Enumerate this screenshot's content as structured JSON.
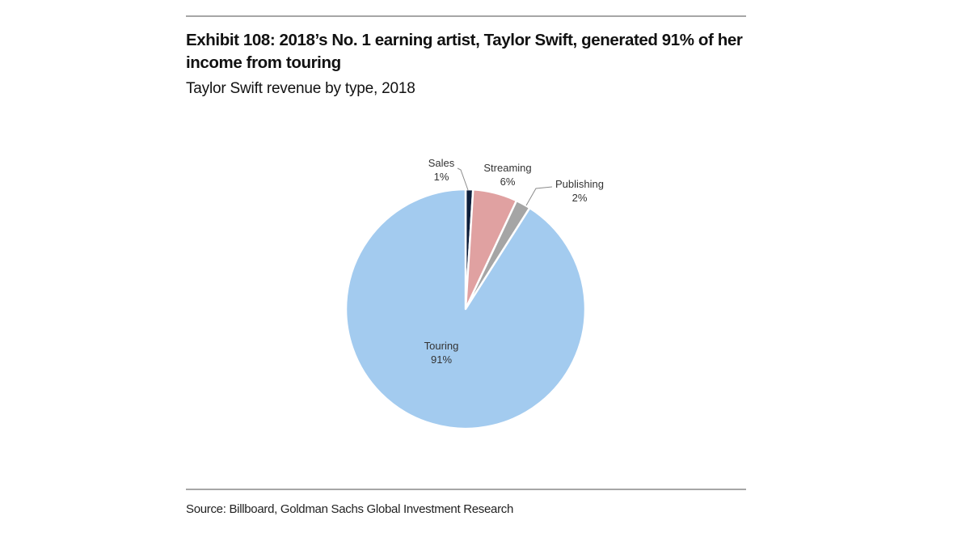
{
  "header": {
    "title": "Exhibit 108: 2018’s No. 1 earning artist, Taylor Swift, generated 91% of her income from touring",
    "subtitle": "Taylor Swift revenue by type, 2018"
  },
  "footer": {
    "source": "Source: Billboard, Goldman Sachs Global Investment Research"
  },
  "chart_data": {
    "type": "pie",
    "title": "Exhibit 108: 2018’s No. 1 earning artist, Taylor Swift, generated 91% of her income from touring",
    "subtitle": "Taylor Swift revenue by type, 2018",
    "start_angle": "12 o'clock, clockwise",
    "slices": [
      {
        "label": "Sales",
        "value": 1,
        "value_label": "1%",
        "color": "#0d1f3c",
        "leader_line": true
      },
      {
        "label": "Streaming",
        "value": 6,
        "value_label": "6%",
        "color": "#e0a1a1",
        "leader_line": false
      },
      {
        "label": "Publishing",
        "value": 2,
        "value_label": "2%",
        "color": "#a5a5a5",
        "leader_line": true
      },
      {
        "label": "Touring",
        "value": 91,
        "value_label": "91%",
        "color": "#a3cbef",
        "leader_line": false
      }
    ],
    "slice_border_color": "#ffffff",
    "legend": "none"
  }
}
